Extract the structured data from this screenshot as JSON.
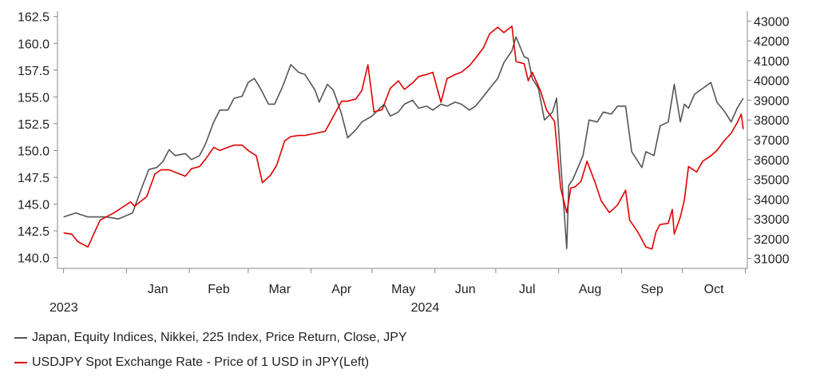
{
  "chart_data": {
    "type": "line",
    "title": "",
    "xlabel": "",
    "x_tick_labels": [
      "Jan",
      "Feb",
      "Mar",
      "Apr",
      "May",
      "Jun",
      "Jul",
      "Aug",
      "Sep",
      "Oct"
    ],
    "year_labels": [
      "2023",
      "2024"
    ],
    "left_axis": {
      "ylim": [
        139,
        163
      ],
      "ticks": [
        "140.0",
        "142.5",
        "145.0",
        "147.5",
        "150.0",
        "152.5",
        "155.0",
        "157.5",
        "160.0",
        "162.5"
      ]
    },
    "right_axis": {
      "ylim": [
        30500,
        43500
      ],
      "ticks": [
        "31000",
        "32000",
        "33000",
        "34000",
        "35000",
        "36000",
        "37000",
        "38000",
        "39000",
        "40000",
        "41000",
        "42000",
        "43000"
      ]
    },
    "grid": false,
    "legend_position": "bottom-left",
    "series": [
      {
        "name": "Japan, Equity Indices, Nikkei, 225 Index, Price Return, Close, JPY",
        "axis": "right",
        "color": "#555555",
        "points": [
          [
            "2023-12-01",
            33100
          ],
          [
            "2023-12-07",
            33300
          ],
          [
            "2023-12-13",
            33100
          ],
          [
            "2023-12-22",
            33100
          ],
          [
            "2023-12-28",
            33000
          ],
          [
            "2024-01-04",
            33300
          ],
          [
            "2024-01-09",
            34700
          ],
          [
            "2024-01-12",
            35500
          ],
          [
            "2024-01-16",
            35600
          ],
          [
            "2024-01-19",
            35900
          ],
          [
            "2024-01-22",
            36500
          ],
          [
            "2024-01-25",
            36200
          ],
          [
            "2024-01-30",
            36300
          ],
          [
            "2024-02-02",
            36000
          ],
          [
            "2024-02-06",
            36200
          ],
          [
            "2024-02-09",
            36800
          ],
          [
            "2024-02-13",
            37900
          ],
          [
            "2024-02-16",
            38500
          ],
          [
            "2024-02-20",
            38500
          ],
          [
            "2024-02-23",
            39100
          ],
          [
            "2024-02-27",
            39200
          ],
          [
            "2024-03-01",
            39900
          ],
          [
            "2024-03-04",
            40100
          ],
          [
            "2024-03-07",
            39600
          ],
          [
            "2024-03-11",
            38800
          ],
          [
            "2024-03-14",
            38800
          ],
          [
            "2024-03-18",
            39700
          ],
          [
            "2024-03-22",
            40800
          ],
          [
            "2024-03-26",
            40400
          ],
          [
            "2024-03-29",
            40300
          ],
          [
            "2024-04-03",
            39500
          ],
          [
            "2024-04-05",
            38900
          ],
          [
            "2024-04-09",
            39800
          ],
          [
            "2024-04-12",
            39500
          ],
          [
            "2024-04-16",
            38300
          ],
          [
            "2024-04-19",
            37100
          ],
          [
            "2024-04-23",
            37500
          ],
          [
            "2024-04-26",
            37900
          ],
          [
            "2024-05-01",
            38200
          ],
          [
            "2024-05-07",
            38800
          ],
          [
            "2024-05-10",
            38200
          ],
          [
            "2024-05-14",
            38400
          ],
          [
            "2024-05-17",
            38800
          ],
          [
            "2024-05-21",
            39000
          ],
          [
            "2024-05-24",
            38600
          ],
          [
            "2024-05-28",
            38700
          ],
          [
            "2024-05-31",
            38500
          ],
          [
            "2024-06-04",
            38800
          ],
          [
            "2024-06-07",
            38700
          ],
          [
            "2024-06-11",
            38900
          ],
          [
            "2024-06-14",
            38800
          ],
          [
            "2024-06-18",
            38500
          ],
          [
            "2024-06-21",
            38700
          ],
          [
            "2024-06-25",
            39200
          ],
          [
            "2024-06-28",
            39600
          ],
          [
            "2024-07-02",
            40100
          ],
          [
            "2024-07-05",
            40900
          ],
          [
            "2024-07-09",
            41500
          ],
          [
            "2024-07-11",
            42200
          ],
          [
            "2024-07-15",
            41200
          ],
          [
            "2024-07-17",
            41100
          ],
          [
            "2024-07-19",
            40100
          ],
          [
            "2024-07-22",
            39600
          ],
          [
            "2024-07-25",
            38000
          ],
          [
            "2024-07-29",
            38400
          ],
          [
            "2024-07-31",
            39100
          ],
          [
            "2024-08-02",
            35900
          ],
          [
            "2024-08-05",
            31500
          ],
          [
            "2024-08-06",
            34700
          ],
          [
            "2024-08-08",
            35000
          ],
          [
            "2024-08-13",
            36200
          ],
          [
            "2024-08-16",
            38000
          ],
          [
            "2024-08-20",
            37900
          ],
          [
            "2024-08-23",
            38400
          ],
          [
            "2024-08-27",
            38300
          ],
          [
            "2024-08-30",
            38700
          ],
          [
            "2024-09-03",
            38700
          ],
          [
            "2024-09-06",
            36400
          ],
          [
            "2024-09-11",
            35600
          ],
          [
            "2024-09-13",
            36400
          ],
          [
            "2024-09-17",
            36200
          ],
          [
            "2024-09-20",
            37700
          ],
          [
            "2024-09-24",
            37900
          ],
          [
            "2024-09-27",
            39800
          ],
          [
            "2024-09-30",
            37900
          ],
          [
            "2024-10-02",
            38800
          ],
          [
            "2024-10-04",
            38600
          ],
          [
            "2024-10-07",
            39300
          ],
          [
            "2024-10-11",
            39600
          ],
          [
            "2024-10-15",
            39900
          ],
          [
            "2024-10-18",
            38900
          ],
          [
            "2024-10-22",
            38400
          ],
          [
            "2024-10-25",
            37900
          ],
          [
            "2024-10-28",
            38600
          ],
          [
            "2024-10-31",
            39100
          ]
        ]
      },
      {
        "name": "USDJPY Spot Exchange Rate - Price of 1 USD in JPY(Left)",
        "axis": "left",
        "color": "#e00000",
        "points": [
          [
            "2023-12-01",
            142.3
          ],
          [
            "2023-12-05",
            142.2
          ],
          [
            "2023-12-08",
            141.5
          ],
          [
            "2023-12-13",
            141.0
          ],
          [
            "2023-12-19",
            143.5
          ],
          [
            "2023-12-26",
            144.2
          ],
          [
            "2023-12-30",
            144.7
          ],
          [
            "2024-01-03",
            145.2
          ],
          [
            "2024-01-05",
            144.8
          ],
          [
            "2024-01-11",
            145.7
          ],
          [
            "2024-01-15",
            147.8
          ],
          [
            "2024-01-18",
            148.2
          ],
          [
            "2024-01-22",
            148.2
          ],
          [
            "2024-01-26",
            147.9
          ],
          [
            "2024-01-30",
            147.6
          ],
          [
            "2024-02-02",
            148.3
          ],
          [
            "2024-02-06",
            148.5
          ],
          [
            "2024-02-09",
            149.2
          ],
          [
            "2024-02-13",
            150.3
          ],
          [
            "2024-02-16",
            150.0
          ],
          [
            "2024-02-20",
            150.3
          ],
          [
            "2024-02-23",
            150.5
          ],
          [
            "2024-02-27",
            150.5
          ],
          [
            "2024-03-01",
            150.0
          ],
          [
            "2024-03-05",
            149.5
          ],
          [
            "2024-03-08",
            147.0
          ],
          [
            "2024-03-12",
            147.7
          ],
          [
            "2024-03-15",
            148.6
          ],
          [
            "2024-03-19",
            150.9
          ],
          [
            "2024-03-22",
            151.3
          ],
          [
            "2024-03-26",
            151.4
          ],
          [
            "2024-03-29",
            151.4
          ],
          [
            "2024-04-03",
            151.6
          ],
          [
            "2024-04-08",
            151.8
          ],
          [
            "2024-04-12",
            153.2
          ],
          [
            "2024-04-16",
            154.6
          ],
          [
            "2024-04-19",
            154.6
          ],
          [
            "2024-04-23",
            154.8
          ],
          [
            "2024-04-26",
            155.6
          ],
          [
            "2024-04-29",
            158.0
          ],
          [
            "2024-05-02",
            153.6
          ],
          [
            "2024-05-06",
            153.8
          ],
          [
            "2024-05-10",
            155.8
          ],
          [
            "2024-05-14",
            156.5
          ],
          [
            "2024-05-17",
            155.7
          ],
          [
            "2024-05-21",
            156.3
          ],
          [
            "2024-05-24",
            156.9
          ],
          [
            "2024-05-28",
            157.1
          ],
          [
            "2024-05-31",
            157.3
          ],
          [
            "2024-06-04",
            154.5
          ],
          [
            "2024-06-07",
            156.7
          ],
          [
            "2024-06-11",
            157.1
          ],
          [
            "2024-06-14",
            157.3
          ],
          [
            "2024-06-18",
            157.9
          ],
          [
            "2024-06-21",
            158.6
          ],
          [
            "2024-06-25",
            159.6
          ],
          [
            "2024-06-28",
            160.9
          ],
          [
            "2024-07-02",
            161.5
          ],
          [
            "2024-07-05",
            161.0
          ],
          [
            "2024-07-09",
            161.6
          ],
          [
            "2024-07-11",
            158.3
          ],
          [
            "2024-07-15",
            158.1
          ],
          [
            "2024-07-17",
            156.5
          ],
          [
            "2024-07-19",
            157.3
          ],
          [
            "2024-07-23",
            155.6
          ],
          [
            "2024-07-26",
            153.8
          ],
          [
            "2024-07-30",
            152.7
          ],
          [
            "2024-08-02",
            146.5
          ],
          [
            "2024-08-05",
            144.2
          ],
          [
            "2024-08-07",
            146.5
          ],
          [
            "2024-08-09",
            146.6
          ],
          [
            "2024-08-12",
            147.1
          ],
          [
            "2024-08-15",
            149.0
          ],
          [
            "2024-08-19",
            147.0
          ],
          [
            "2024-08-22",
            145.3
          ],
          [
            "2024-08-26",
            144.2
          ],
          [
            "2024-08-30",
            144.9
          ],
          [
            "2024-09-03",
            146.3
          ],
          [
            "2024-09-05",
            143.5
          ],
          [
            "2024-09-09",
            142.4
          ],
          [
            "2024-09-13",
            141.0
          ],
          [
            "2024-09-16",
            140.8
          ],
          [
            "2024-09-18",
            142.4
          ],
          [
            "2024-09-20",
            143.1
          ],
          [
            "2024-09-24",
            143.2
          ],
          [
            "2024-09-26",
            144.5
          ],
          [
            "2024-09-27",
            142.2
          ],
          [
            "2024-09-30",
            143.8
          ],
          [
            "2024-10-02",
            145.4
          ],
          [
            "2024-10-04",
            148.5
          ],
          [
            "2024-10-08",
            148.0
          ],
          [
            "2024-10-11",
            149.0
          ],
          [
            "2024-10-15",
            149.5
          ],
          [
            "2024-10-18",
            150.0
          ],
          [
            "2024-10-22",
            151.0
          ],
          [
            "2024-10-25",
            151.6
          ],
          [
            "2024-10-28",
            152.6
          ],
          [
            "2024-10-30",
            153.4
          ],
          [
            "2024-10-31",
            152.0
          ]
        ]
      }
    ]
  }
}
